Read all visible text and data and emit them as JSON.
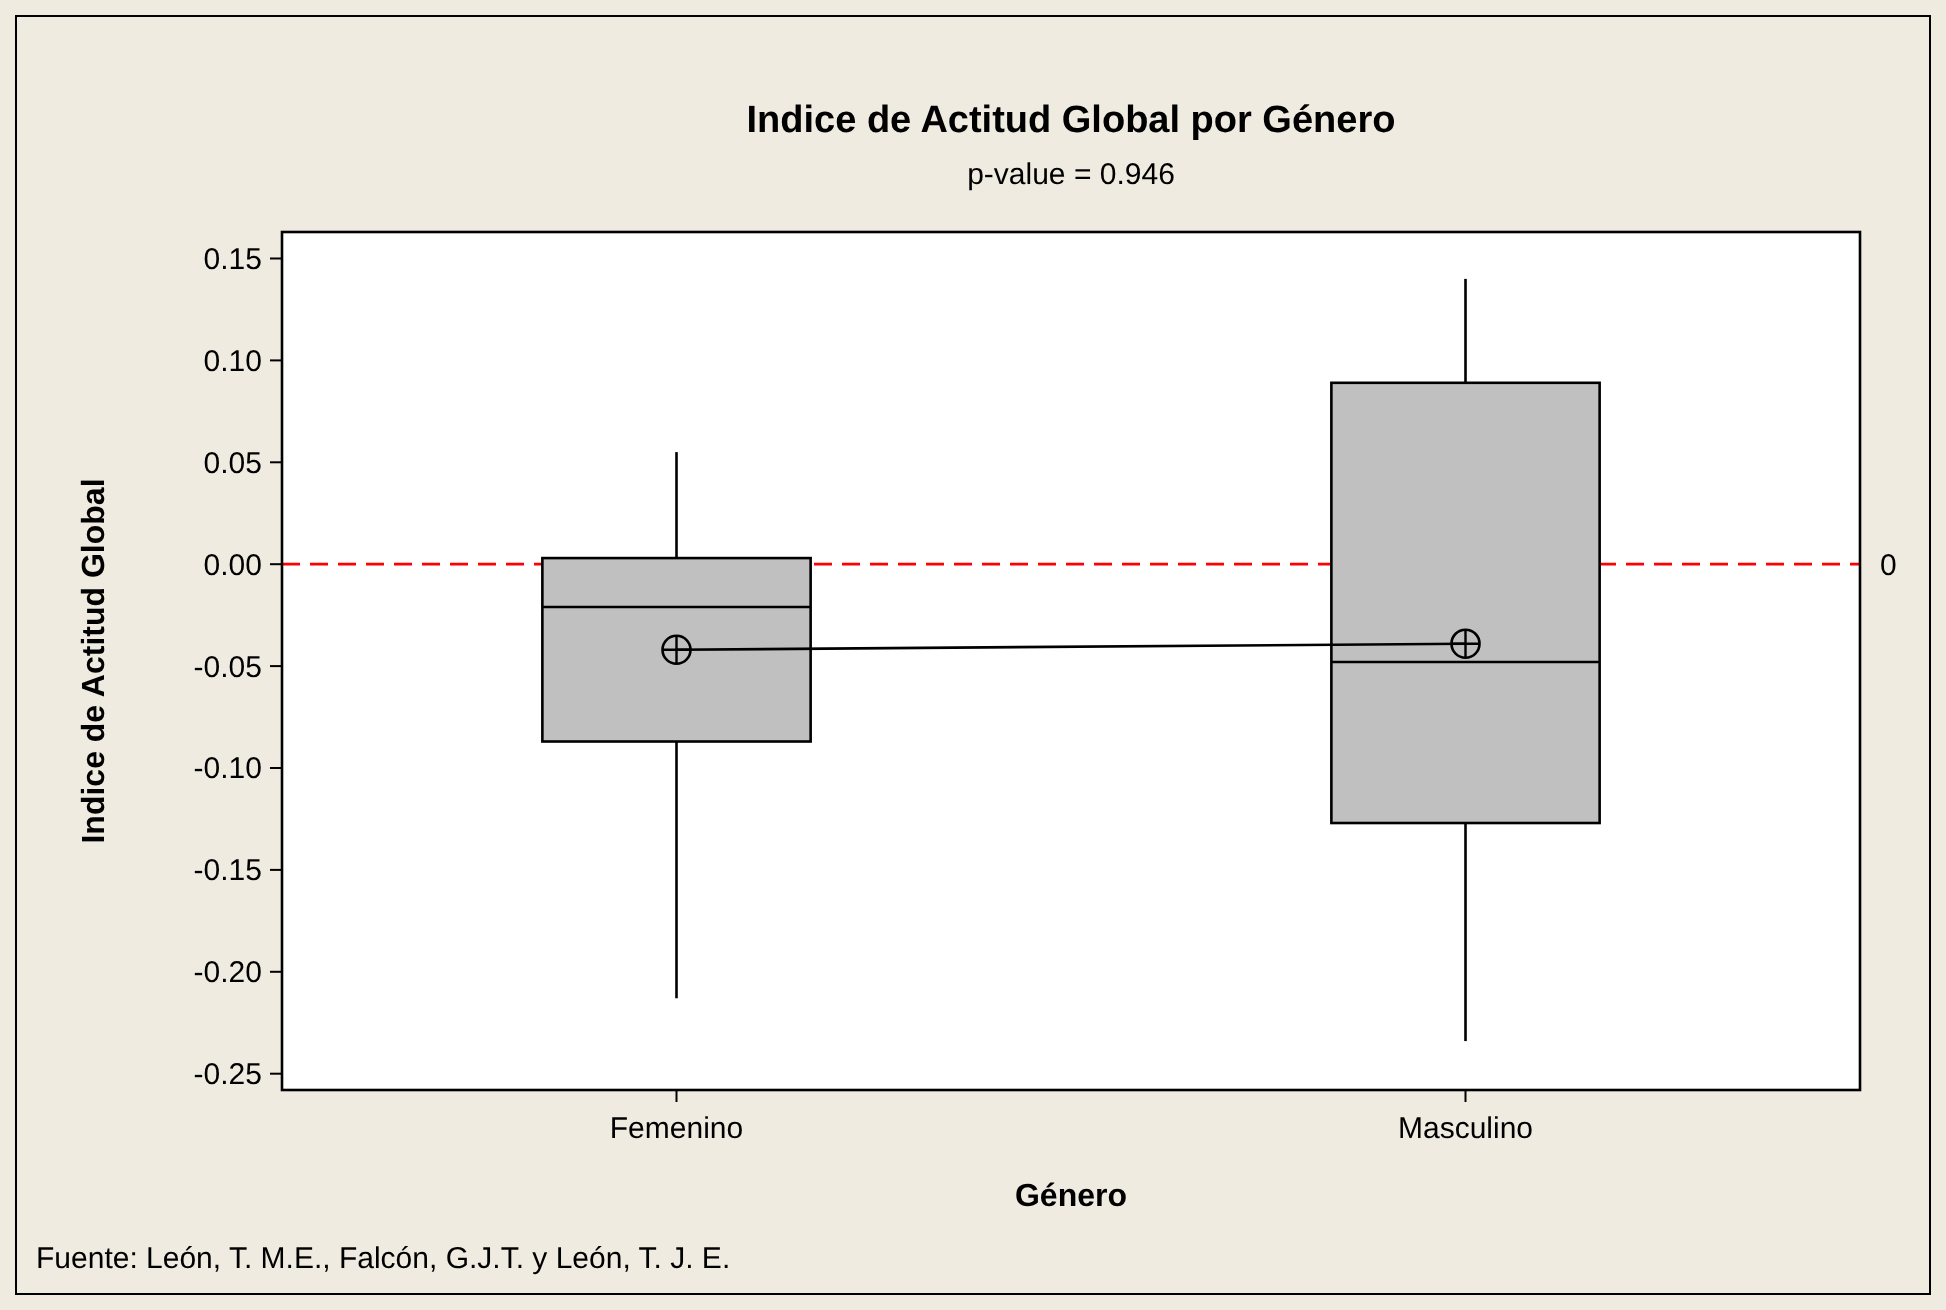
{
  "chart_data": {
    "type": "box",
    "title": "Indice de Actitud Global por Género",
    "subtitle": "p-value = 0.946",
    "xlabel": "Género",
    "ylabel": "Indice de Actitud Global",
    "categories": [
      "Femenino",
      "Masculino"
    ],
    "series": [
      {
        "color": "#c0c0c0",
        "boxes": [
          {
            "low": -0.213,
            "q1": -0.087,
            "median": -0.021,
            "q3": 0.003,
            "high": 0.055,
            "mean": -0.042
          },
          {
            "low": -0.234,
            "q1": -0.127,
            "median": -0.048,
            "q3": 0.089,
            "high": 0.14,
            "mean": -0.039
          }
        ]
      },
      {
        "type": "line",
        "color": "#000000",
        "values": [
          -0.042,
          -0.039
        ]
      }
    ],
    "ylim": [
      -0.258,
      0.163
    ],
    "yticks": [
      {
        "value": -0.25,
        "label": "-0.25"
      },
      {
        "value": -0.2,
        "label": "-0.20"
      },
      {
        "value": -0.15,
        "label": "-0.15"
      },
      {
        "value": -0.1,
        "label": "-0.10"
      },
      {
        "value": -0.05,
        "label": "-0.05"
      },
      {
        "value": 0,
        "label": "0.00"
      },
      {
        "value": 0.05,
        "label": "0.05"
      },
      {
        "value": 0.1,
        "label": "0.10"
      },
      {
        "value": 0.15,
        "label": "0.15"
      }
    ],
    "ref_lines": [
      {
        "axis": "y",
        "value": 0,
        "label": "0",
        "color": "#ff0000",
        "line_style": "dashed"
      }
    ],
    "grid": false,
    "annotations": [
      "Fuente: León, T. M.E., Falcón, G.J.T. y León, T. J. E."
    ]
  }
}
